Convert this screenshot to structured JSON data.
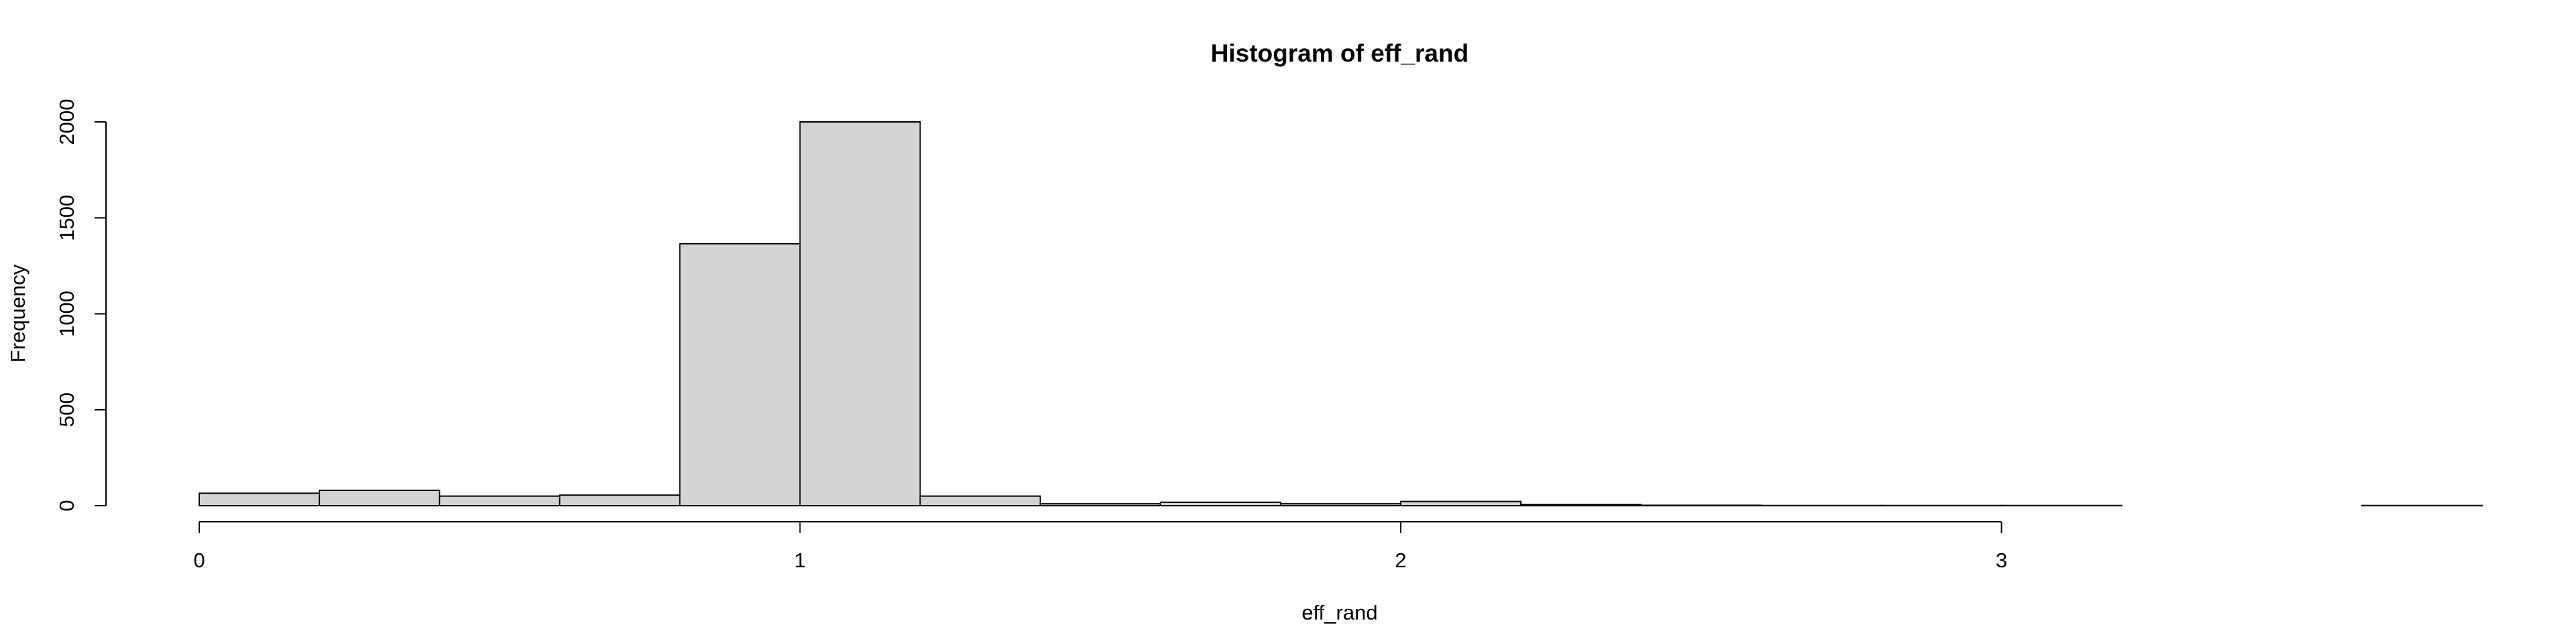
{
  "chart_data": {
    "type": "bar",
    "title": "Histogram of eff_rand",
    "xlabel": "eff_rand",
    "ylabel": "Frequency",
    "xlim": [
      0,
      3.8
    ],
    "ylim": [
      0,
      2000
    ],
    "x_ticks": [
      0,
      1,
      2,
      3
    ],
    "y_ticks": [
      0,
      500,
      1000,
      1500,
      2000
    ],
    "bin_width": 0.2,
    "bins": [
      {
        "start": 0.0,
        "end": 0.2,
        "count": 65
      },
      {
        "start": 0.2,
        "end": 0.4,
        "count": 80
      },
      {
        "start": 0.4,
        "end": 0.6,
        "count": 50
      },
      {
        "start": 0.6,
        "end": 0.8,
        "count": 55
      },
      {
        "start": 0.8,
        "end": 1.0,
        "count": 1365
      },
      {
        "start": 1.0,
        "end": 1.2,
        "count": 2000
      },
      {
        "start": 1.2,
        "end": 1.4,
        "count": 50
      },
      {
        "start": 1.4,
        "end": 1.6,
        "count": 10
      },
      {
        "start": 1.6,
        "end": 1.8,
        "count": 18
      },
      {
        "start": 1.8,
        "end": 2.0,
        "count": 10
      },
      {
        "start": 2.0,
        "end": 2.2,
        "count": 22
      },
      {
        "start": 2.2,
        "end": 2.4,
        "count": 6
      },
      {
        "start": 2.4,
        "end": 2.6,
        "count": 2
      },
      {
        "start": 2.6,
        "end": 2.8,
        "count": 1
      },
      {
        "start": 2.8,
        "end": 3.0,
        "count": 1
      },
      {
        "start": 3.0,
        "end": 3.2,
        "count": 1
      },
      {
        "start": 3.2,
        "end": 3.4,
        "count": 0
      },
      {
        "start": 3.4,
        "end": 3.6,
        "count": 0
      },
      {
        "start": 3.6,
        "end": 3.8,
        "count": 1
      }
    ],
    "bar_fill": "#d3d3d3",
    "bar_stroke": "#000000",
    "grid": false,
    "legend": "none"
  }
}
